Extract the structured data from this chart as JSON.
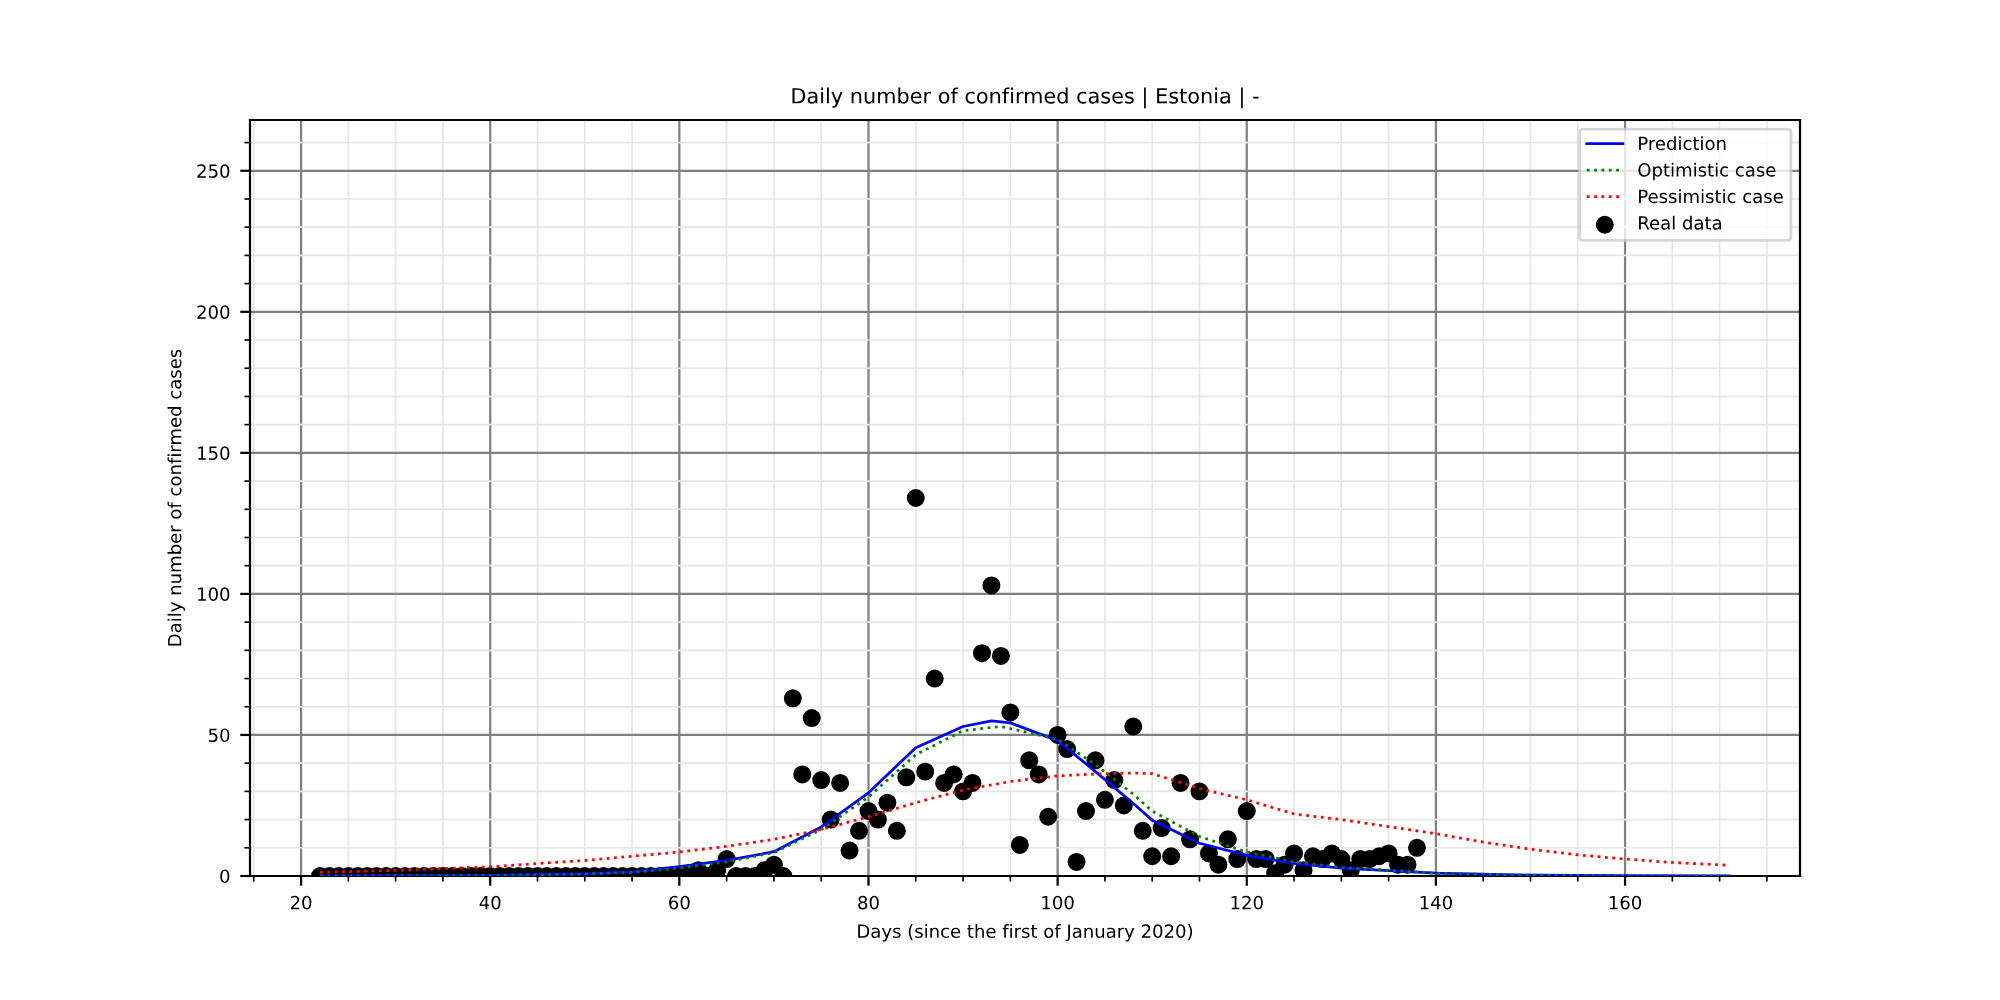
{
  "chart_data": {
    "type": "line",
    "title": "Daily number of confirmed cases | Estonia | -",
    "xlabel": "Days (since the first of January 2020)",
    "ylabel": "Daily number of confirmed cases",
    "xlim": [
      14.6,
      178.5
    ],
    "ylim": [
      0,
      268
    ],
    "xticks": [
      {
        "value": 15,
        "label": null
      },
      20,
      {
        "value": 25,
        "label": null
      },
      {
        "value": 30,
        "label": null
      },
      {
        "value": 35,
        "label": null
      },
      40,
      {
        "value": 45,
        "label": null
      },
      {
        "value": 50,
        "label": null
      },
      {
        "value": 55,
        "label": null
      },
      60,
      {
        "value": 65,
        "label": null
      },
      {
        "value": 70,
        "label": null
      },
      {
        "value": 75,
        "label": null
      },
      80,
      {
        "value": 85,
        "label": null
      },
      {
        "value": 90,
        "label": null
      },
      {
        "value": 95,
        "label": null
      },
      100,
      {
        "value": 105,
        "label": null
      },
      {
        "value": 110,
        "label": null
      },
      {
        "value": 115,
        "label": null
      },
      120,
      {
        "value": 125,
        "label": null
      },
      {
        "value": 130,
        "label": null
      },
      {
        "value": 135,
        "label": null
      },
      140,
      {
        "value": 145,
        "label": null
      },
      {
        "value": 150,
        "label": null
      },
      {
        "value": 155,
        "label": null
      },
      160,
      {
        "value": 165,
        "label": null
      },
      {
        "value": 170,
        "label": null
      },
      {
        "value": 175,
        "label": null
      }
    ],
    "yticks": [
      0,
      {
        "value": 10,
        "label": null
      },
      {
        "value": 20,
        "label": null
      },
      {
        "value": 30,
        "label": null
      },
      {
        "value": 40,
        "label": null
      },
      50,
      {
        "value": 60,
        "label": null
      },
      {
        "value": 70,
        "label": null
      },
      {
        "value": 80,
        "label": null
      },
      {
        "value": 90,
        "label": null
      },
      100,
      {
        "value": 110,
        "label": null
      },
      {
        "value": 120,
        "label": null
      },
      {
        "value": 130,
        "label": null
      },
      {
        "value": 140,
        "label": null
      },
      150,
      {
        "value": 160,
        "label": null
      },
      {
        "value": 170,
        "label": null
      },
      {
        "value": 180,
        "label": null
      },
      {
        "value": 190,
        "label": null
      },
      200,
      {
        "value": 210,
        "label": null
      },
      {
        "value": 220,
        "label": null
      },
      {
        "value": 230,
        "label": null
      },
      {
        "value": 240,
        "label": null
      },
      250,
      {
        "value": 260,
        "label": null
      }
    ],
    "grid": true,
    "legend": "top right",
    "series": [
      {
        "name": "Prediction",
        "color": "#0000ff",
        "line_style": "solid",
        "x": [
          22,
          40,
          50,
          55,
          60,
          65,
          70,
          75,
          80,
          85,
          90,
          93,
          95,
          100,
          104,
          108,
          110,
          115,
          120,
          125,
          130,
          140,
          150,
          160,
          171
        ],
        "values": [
          0,
          0.2,
          0.8,
          1.5,
          3.3,
          5.5,
          8.6,
          17.4,
          29.5,
          45.5,
          53,
          55,
          54.3,
          48,
          37,
          25.7,
          19.8,
          11.6,
          7.3,
          4.5,
          2.8,
          1,
          0.3,
          0.1,
          0
        ]
      },
      {
        "name": "Optimistic case",
        "color": "#008000",
        "line_style": "dotted",
        "x": [
          22,
          40,
          50,
          55,
          60,
          65,
          70,
          75,
          80,
          85,
          90,
          94,
          100,
          104,
          108,
          110,
          115,
          120,
          125,
          130,
          140,
          150,
          160,
          171
        ],
        "values": [
          0,
          0.2,
          0.7,
          1.3,
          2.8,
          5,
          8.3,
          16.5,
          28,
          43,
          51.5,
          53,
          48.5,
          39.5,
          29,
          23,
          14,
          8.5,
          5,
          3,
          1,
          0.3,
          0.1,
          0
        ]
      },
      {
        "name": "Pessimistic case",
        "color": "#ff0000",
        "line_style": "dotted",
        "x": [
          22,
          30,
          40,
          50,
          60,
          65,
          70,
          75,
          80,
          85,
          90,
          95,
          100,
          105,
          108,
          110,
          115,
          120,
          125,
          130,
          135,
          140,
          145,
          150,
          155,
          160,
          165,
          171
        ],
        "values": [
          1.3,
          2,
          3.3,
          5.5,
          8.5,
          10.5,
          13,
          16.5,
          21,
          26,
          30.5,
          33.5,
          35.5,
          36.3,
          36.5,
          36.3,
          31,
          27,
          22,
          20,
          17.5,
          15,
          12,
          9.5,
          7.5,
          6,
          4.8,
          3.8
        ]
      },
      {
        "name": "Real data",
        "type": "scatter",
        "color": "#000000",
        "marker": "circle",
        "x": [
          22,
          23,
          24,
          25,
          26,
          27,
          28,
          29,
          30,
          31,
          32,
          33,
          34,
          35,
          36,
          37,
          38,
          39,
          40,
          41,
          42,
          43,
          44,
          45,
          46,
          47,
          48,
          49,
          50,
          51,
          52,
          53,
          54,
          55,
          56,
          57,
          58,
          59,
          60,
          61,
          62,
          63,
          64,
          65,
          66,
          67,
          68,
          69,
          70,
          71,
          72,
          73,
          74,
          75,
          76,
          77,
          78,
          79,
          80,
          81,
          82,
          83,
          84,
          85,
          86,
          87,
          88,
          89,
          90,
          91,
          92,
          93,
          94,
          95,
          96,
          97,
          98,
          99,
          100,
          101,
          102,
          103,
          104,
          105,
          106,
          107,
          108,
          109,
          110,
          111,
          112,
          113,
          114,
          115,
          116,
          117,
          118,
          119,
          120,
          121,
          122,
          123,
          124,
          125,
          126,
          127,
          128,
          129,
          130,
          131,
          132,
          133,
          134,
          135,
          136,
          137,
          138
        ],
        "values": [
          0,
          0,
          0,
          0,
          0,
          0,
          0,
          0,
          0,
          0,
          0,
          0,
          0,
          0,
          0,
          0,
          0,
          0,
          0,
          0,
          0,
          0,
          0,
          0,
          0,
          0,
          0,
          0,
          0,
          0,
          0,
          0,
          0,
          0,
          0,
          0,
          0,
          0,
          0,
          1,
          2,
          0,
          2,
          6,
          0,
          0,
          0,
          2,
          4,
          0,
          63,
          36,
          56,
          34,
          20,
          33,
          9,
          16,
          23,
          20,
          26,
          16,
          35,
          134,
          37,
          70,
          33,
          36,
          30,
          33,
          79,
          103,
          78,
          58,
          11,
          41,
          36,
          21,
          50,
          45,
          5,
          23,
          41,
          27,
          34,
          25,
          53,
          16,
          7,
          17,
          7,
          33,
          13,
          30,
          8,
          4,
          13,
          6,
          23,
          6,
          6,
          1,
          4,
          8,
          2,
          7,
          6,
          8,
          6,
          2,
          6,
          6,
          7,
          8,
          4,
          4,
          10
        ]
      }
    ]
  }
}
